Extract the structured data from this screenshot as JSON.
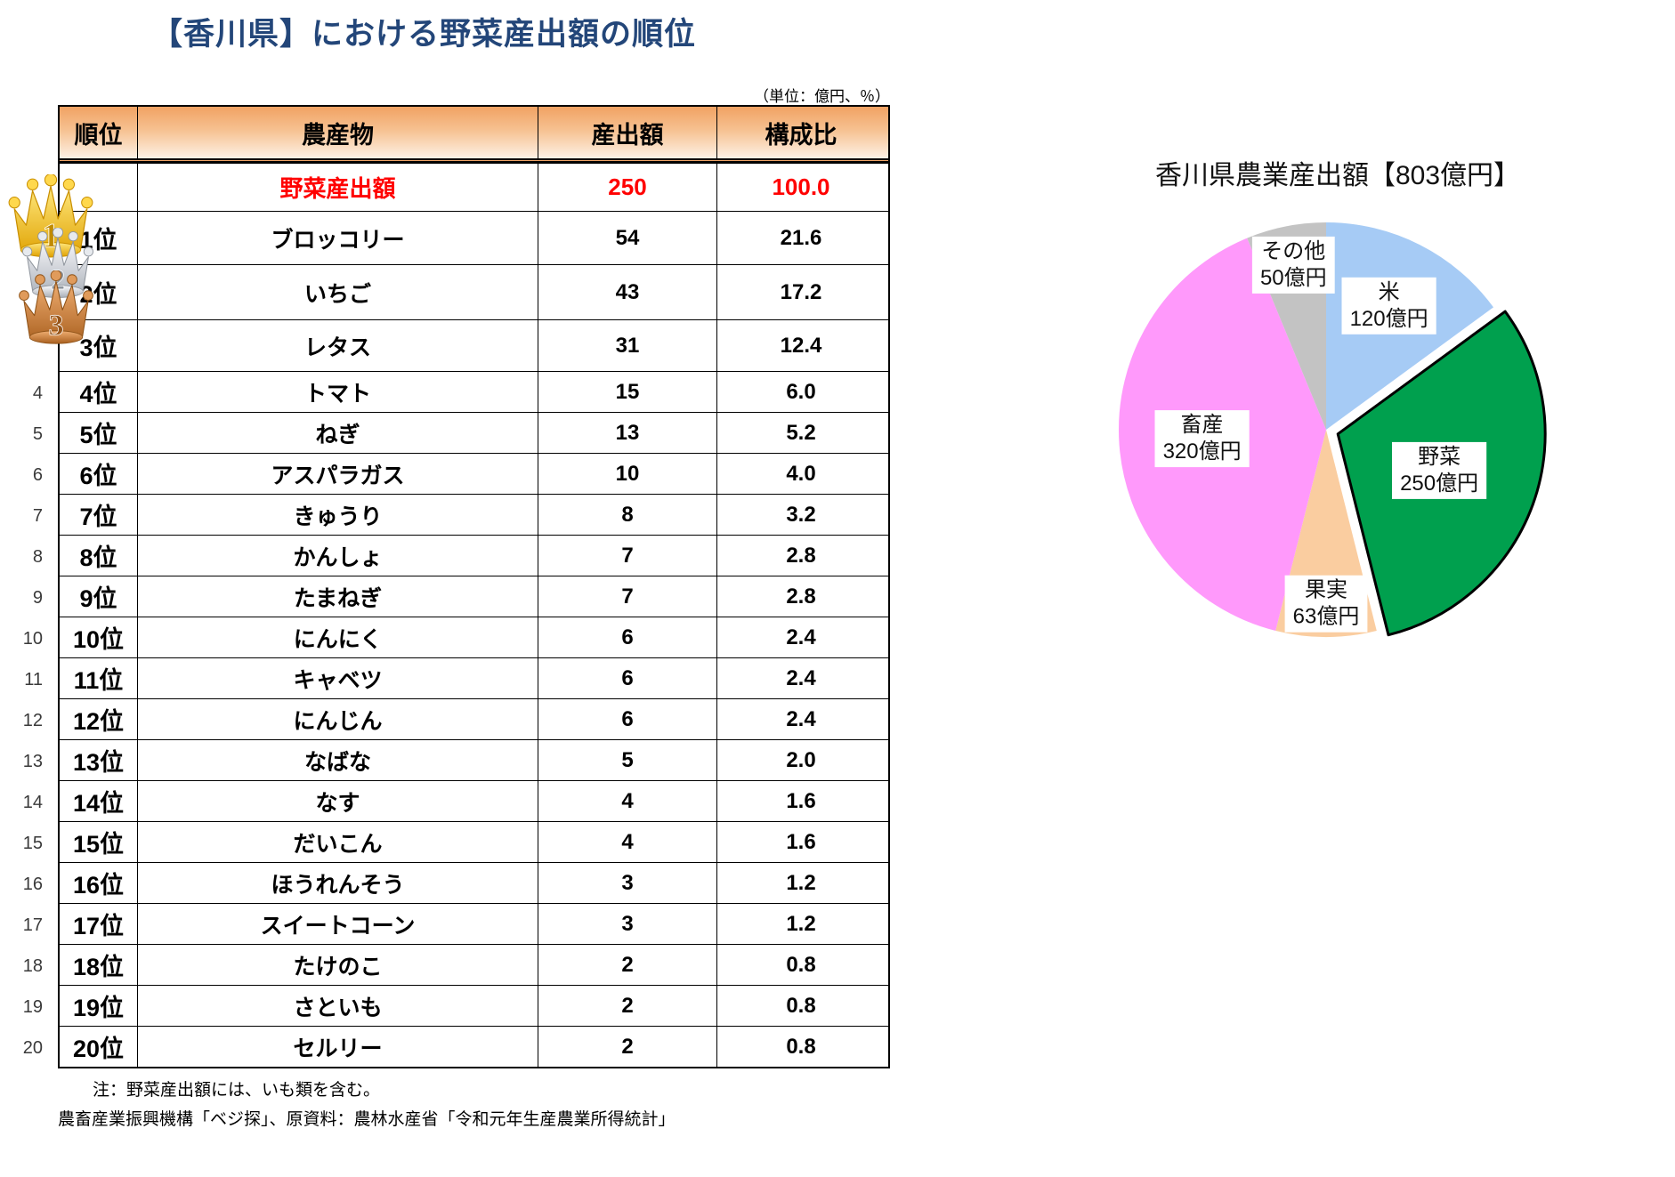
{
  "title": "【香川県】における野菜産出額の順位",
  "table": {
    "unit_note": "（単位：億円、％）",
    "columns": [
      "順位",
      "農産物",
      "産出額",
      "構成比"
    ],
    "total_row": {
      "rank": "",
      "name": "野菜産出額",
      "value": "250",
      "share": "100.0"
    },
    "rows": [
      {
        "rank": "1位",
        "name": "ブロッコリー",
        "value": "54",
        "share": "21.6",
        "medal": "gold",
        "medal_number": "1"
      },
      {
        "rank": "2位",
        "name": "いちご",
        "value": "43",
        "share": "17.2",
        "medal": "silver",
        "medal_number": "2"
      },
      {
        "rank": "3位",
        "name": "レタス",
        "value": "31",
        "share": "12.4",
        "medal": "bronze",
        "medal_number": "3"
      },
      {
        "rank": "4位",
        "name": "トマト",
        "value": "15",
        "share": "6.0",
        "row_no": "4"
      },
      {
        "rank": "5位",
        "name": "ねぎ",
        "value": "13",
        "share": "5.2",
        "row_no": "5"
      },
      {
        "rank": "6位",
        "name": "アスパラガス",
        "value": "10",
        "share": "4.0",
        "row_no": "6"
      },
      {
        "rank": "7位",
        "name": "きゅうり",
        "value": "8",
        "share": "3.2",
        "row_no": "7"
      },
      {
        "rank": "8位",
        "name": "かんしょ",
        "value": "7",
        "share": "2.8",
        "row_no": "8"
      },
      {
        "rank": "9位",
        "name": "たまねぎ",
        "value": "7",
        "share": "2.8",
        "row_no": "9"
      },
      {
        "rank": "10位",
        "name": "にんにく",
        "value": "6",
        "share": "2.4",
        "row_no": "10"
      },
      {
        "rank": "11位",
        "name": "キャベツ",
        "value": "6",
        "share": "2.4",
        "row_no": "11"
      },
      {
        "rank": "12位",
        "name": "にんじん",
        "value": "6",
        "share": "2.4",
        "row_no": "12"
      },
      {
        "rank": "13位",
        "name": "なばな",
        "value": "5",
        "share": "2.0",
        "row_no": "13"
      },
      {
        "rank": "14位",
        "name": "なす",
        "value": "4",
        "share": "1.6",
        "row_no": "14"
      },
      {
        "rank": "15位",
        "name": "だいこん",
        "value": "4",
        "share": "1.6",
        "row_no": "15"
      },
      {
        "rank": "16位",
        "name": "ほうれんそう",
        "value": "3",
        "share": "1.2",
        "row_no": "16"
      },
      {
        "rank": "17位",
        "name": "スイートコーン",
        "value": "3",
        "share": "1.2",
        "row_no": "17"
      },
      {
        "rank": "18位",
        "name": "たけのこ",
        "value": "2",
        "share": "0.8",
        "row_no": "18"
      },
      {
        "rank": "19位",
        "name": "さといも",
        "value": "2",
        "share": "0.8",
        "row_no": "19"
      },
      {
        "rank": "20位",
        "name": "セルリー",
        "value": "2",
        "share": "0.8",
        "row_no": "20"
      }
    ]
  },
  "notes": [
    "注：野菜産出額には、いも類を含む。",
    "農畜産業振興機構「ベジ探」、原資料：農林水産省「令和元年生産農業所得統計」"
  ],
  "chart_data": {
    "type": "pie",
    "title": "香川県農業産出額【803億円】",
    "total": 803,
    "unit": "億円",
    "direction": "clockwise",
    "start_angle_deg": 0,
    "legend_position": "inside",
    "slices": [
      {
        "label": "米",
        "value": 120,
        "value_label": "120億円",
        "color": "#A6CBF5"
      },
      {
        "label": "野菜",
        "value": 250,
        "value_label": "250億円",
        "color": "#00A04E",
        "highlighted": true
      },
      {
        "label": "果実",
        "value": 63,
        "value_label": "63億円",
        "color": "#FACDA0"
      },
      {
        "label": "畜産",
        "value": 320,
        "value_label": "320億円",
        "color": "#FF99FB"
      },
      {
        "label": "その他",
        "value": 50,
        "value_label": "50億円",
        "color": "#C3C3C3"
      }
    ]
  }
}
